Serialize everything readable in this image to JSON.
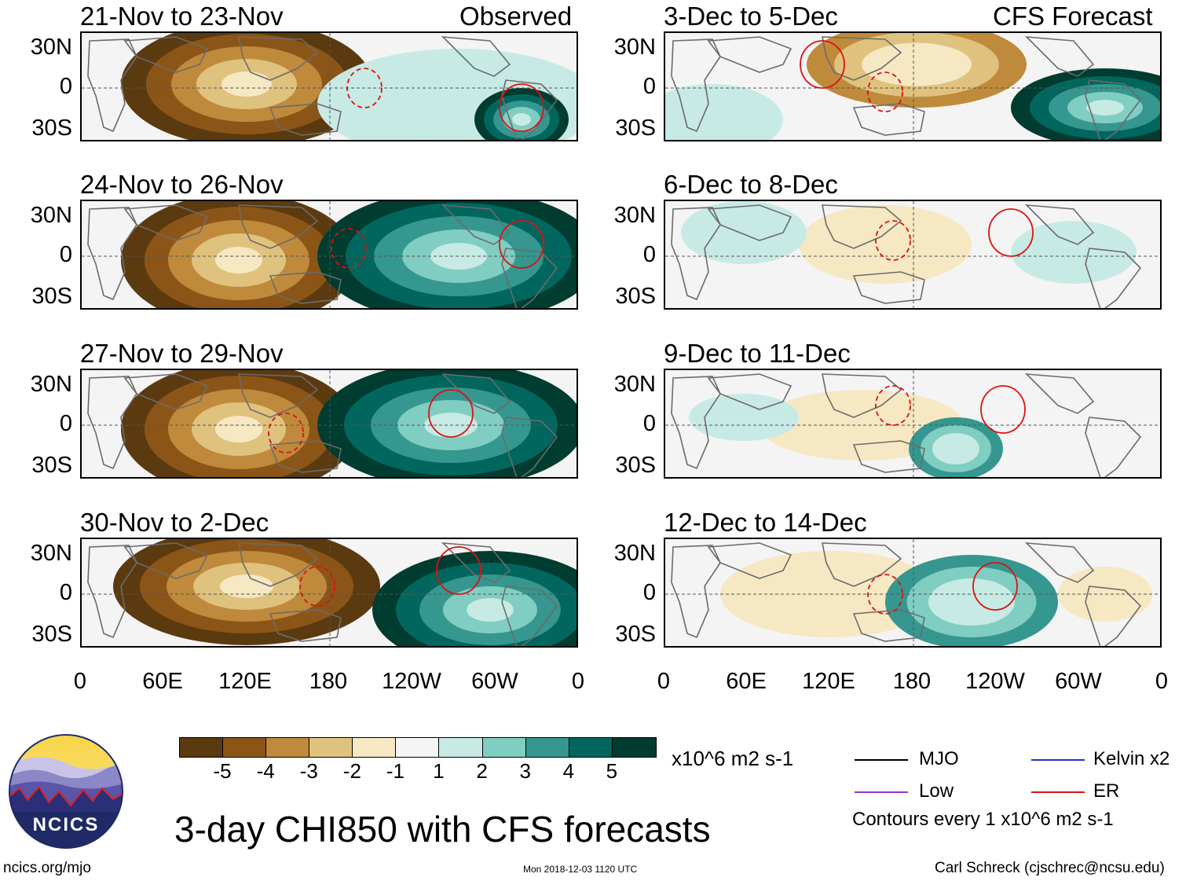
{
  "main_title": "3-day CHI850 with CFS forecasts",
  "website": "ncics.org/mjo",
  "timestamp": "Mon 2018-12-03 1120 UTC",
  "author": "Carl Schreck (cjschrec@ncsu.edu)",
  "logo_text": "NCICS",
  "observed_label": "Observed",
  "forecast_label": "CFS Forecast",
  "lat_labels": [
    "30N",
    "0",
    "30S"
  ],
  "lon_labels": [
    "0",
    "60E",
    "120E",
    "180",
    "120W",
    "60W",
    "0"
  ],
  "panels_left": [
    {
      "title": "21-Nov to 23-Nov"
    },
    {
      "title": "24-Nov to 26-Nov"
    },
    {
      "title": "27-Nov to 29-Nov"
    },
    {
      "title": "30-Nov to 2-Dec"
    }
  ],
  "panels_right": [
    {
      "title": "3-Dec to 5-Dec"
    },
    {
      "title": "6-Dec to 8-Dec"
    },
    {
      "title": "9-Dec to 11-Dec"
    },
    {
      "title": "12-Dec to 14-Dec"
    }
  ],
  "colorbar": {
    "labels": [
      "-5",
      "-4",
      "-3",
      "-2",
      "-1",
      "1",
      "2",
      "3",
      "4",
      "5"
    ],
    "colors": [
      "#5b3a10",
      "#8c5518",
      "#bf8a3b",
      "#dfc27d",
      "#f6e8c3",
      "#f5f5f5",
      "#c7eae5",
      "#80cdc1",
      "#35978f",
      "#01665e",
      "#003c30"
    ],
    "units": "x10^6 m2 s-1"
  },
  "legend": {
    "items": [
      {
        "label": "MJO",
        "color": "#000000"
      },
      {
        "label": "Kelvin x2",
        "color": "#2233cc"
      },
      {
        "label": "Low",
        "color": "#9933dd"
      },
      {
        "label": "ER",
        "color": "#dd1111"
      }
    ],
    "contour_note": "Contours every 1 x10^6 m2 s-1"
  }
}
